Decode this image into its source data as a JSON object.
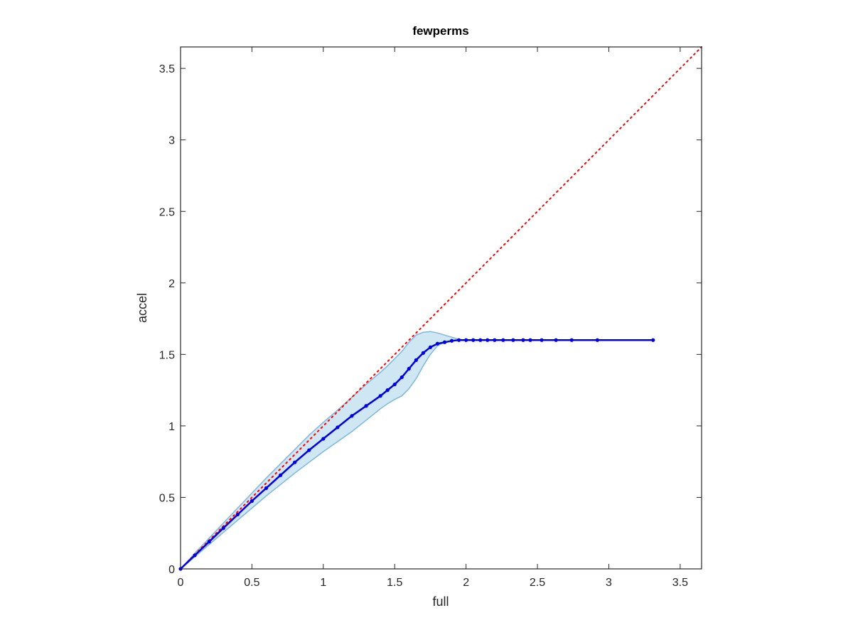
{
  "chart_data": {
    "type": "line",
    "title": "fewperms",
    "xlabel": "full",
    "ylabel": "accel",
    "xlim": [
      0,
      3.65
    ],
    "ylim": [
      0,
      3.65
    ],
    "xticks": [
      "0",
      "0.5",
      "1",
      "1.5",
      "2",
      "2.5",
      "3",
      "3.5"
    ],
    "yticks": [
      "0",
      "0.5",
      "1",
      "1.5",
      "2",
      "2.5",
      "3",
      "3.5"
    ],
    "grid": false,
    "legend": "none",
    "colors": {
      "series": "#0000e6",
      "band_fill": "#cfe6f3",
      "band_edge": "#7fb6dd",
      "reference": "#ff0000",
      "axes": "#262626"
    },
    "series": [
      {
        "x": [
          0,
          0.1,
          0.2,
          0.3,
          0.4,
          0.5,
          0.6,
          0.7,
          0.8,
          0.9,
          1.0,
          1.1,
          1.2,
          1.3,
          1.4,
          1.45,
          1.5,
          1.55,
          1.6,
          1.65,
          1.7,
          1.75,
          1.8,
          1.85,
          1.9,
          1.95,
          2.0,
          2.05,
          2.1,
          2.15,
          2.2,
          2.26,
          2.33,
          2.4,
          2.45,
          2.53,
          2.63,
          2.74,
          2.92,
          3.31
        ],
        "y": [
          0,
          0.095,
          0.19,
          0.285,
          0.38,
          0.475,
          0.565,
          0.655,
          0.745,
          0.83,
          0.91,
          0.99,
          1.07,
          1.14,
          1.21,
          1.25,
          1.29,
          1.34,
          1.4,
          1.46,
          1.51,
          1.55,
          1.575,
          1.585,
          1.595,
          1.6,
          1.6,
          1.6,
          1.6,
          1.6,
          1.6,
          1.6,
          1.6,
          1.6,
          1.6,
          1.6,
          1.6,
          1.6,
          1.6,
          1.6
        ],
        "band_upper": [
          0,
          0.11,
          0.215,
          0.32,
          0.425,
          0.53,
          0.635,
          0.735,
          0.835,
          0.935,
          1.025,
          1.11,
          1.2,
          1.29,
          1.375,
          1.42,
          1.47,
          1.52,
          1.585,
          1.635,
          1.655,
          1.66,
          1.65,
          1.635,
          1.62,
          1.605,
          1.6,
          1.6,
          1.6,
          1.6,
          1.6,
          1.6,
          1.6,
          1.6,
          1.6,
          1.6,
          1.6,
          1.6,
          1.6,
          1.6
        ],
        "band_lower": [
          0,
          0.085,
          0.17,
          0.255,
          0.34,
          0.425,
          0.51,
          0.59,
          0.67,
          0.745,
          0.82,
          0.89,
          0.96,
          1.04,
          1.12,
          1.155,
          1.185,
          1.21,
          1.26,
          1.33,
          1.42,
          1.5,
          1.56,
          1.585,
          1.595,
          1.6,
          1.6,
          1.6,
          1.6,
          1.6,
          1.6,
          1.6,
          1.6,
          1.6,
          1.6,
          1.6,
          1.6,
          1.6,
          1.6,
          1.6
        ]
      }
    ],
    "reference_line": {
      "x": [
        0,
        3.65
      ],
      "y": [
        0,
        3.65
      ],
      "style": "dotted"
    }
  }
}
